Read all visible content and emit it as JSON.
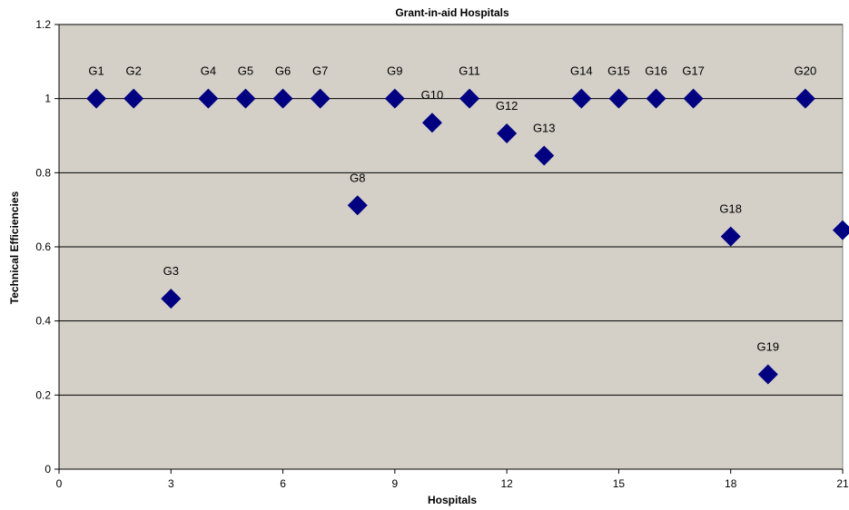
{
  "chart_data": {
    "type": "scatter",
    "title": "Grant-in-aid Hospitals",
    "xlabel": "Hospitals",
    "ylabel": "Technical Efficiencies",
    "xlim": [
      0,
      21
    ],
    "ylim": [
      0,
      1.2
    ],
    "xticks": [
      0,
      3,
      6,
      9,
      12,
      15,
      18,
      21
    ],
    "yticks": [
      0,
      0.2,
      0.4,
      0.6,
      0.8,
      1,
      1.2
    ],
    "grid": "horizontal",
    "plot_background": "#d4d0c8",
    "marker_color": "#000080",
    "marker": "diamond",
    "points": [
      {
        "label": "G1",
        "x": 1,
        "y": 1
      },
      {
        "label": "G2",
        "x": 2,
        "y": 1
      },
      {
        "label": "G3",
        "x": 3,
        "y": 0.46
      },
      {
        "label": "G4",
        "x": 4,
        "y": 1
      },
      {
        "label": "G5",
        "x": 5,
        "y": 1
      },
      {
        "label": "G6",
        "x": 6,
        "y": 1
      },
      {
        "label": "G7",
        "x": 7,
        "y": 1
      },
      {
        "label": "G8",
        "x": 8,
        "y": 0.712
      },
      {
        "label": "G9",
        "x": 9,
        "y": 1
      },
      {
        "label": "G10",
        "x": 10,
        "y": 0.935
      },
      {
        "label": "G11",
        "x": 11,
        "y": 1
      },
      {
        "label": "G12",
        "x": 12,
        "y": 0.906
      },
      {
        "label": "G13",
        "x": 13,
        "y": 0.846
      },
      {
        "label": "G14",
        "x": 14,
        "y": 1
      },
      {
        "label": "G15",
        "x": 15,
        "y": 1
      },
      {
        "label": "G16",
        "x": 16,
        "y": 1
      },
      {
        "label": "G17",
        "x": 17,
        "y": 1
      },
      {
        "label": "G18",
        "x": 18,
        "y": 0.628
      },
      {
        "label": "G19",
        "x": 19,
        "y": 0.256
      },
      {
        "label": "G20",
        "x": 20,
        "y": 1
      },
      {
        "label": "",
        "x": 21,
        "y": 0.645
      }
    ]
  }
}
